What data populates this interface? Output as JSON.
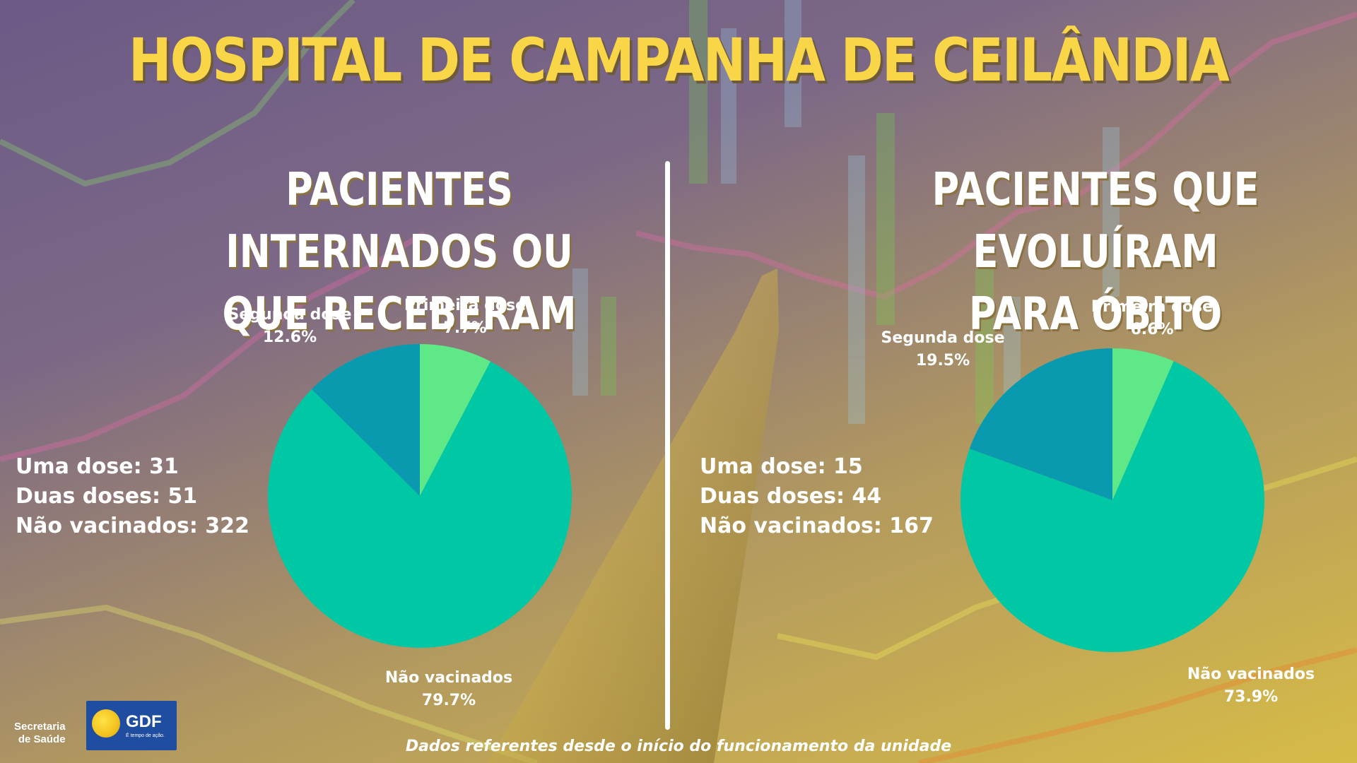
{
  "title": "HOSPITAL DE CAMPANHA DE CEILÂNDIA",
  "footer_note": "Dados referentes desde o início do funcionamento da unidade",
  "logo": {
    "secretaria": [
      "Secretaria",
      "de Saúde"
    ],
    "brand": "GDF",
    "tagline": "É tempo de ação."
  },
  "colors": {
    "primeira_dose": "#5ee887",
    "segunda_dose": "#0a9ab0",
    "nao_vacinados": "#00c8a5"
  },
  "panels": [
    {
      "subtitle": [
        "PACIENTES INTERNADOS OU",
        "QUE RECEBERAM ALTA"
      ],
      "counts": [
        "Uma dose: 31",
        "Duas doses: 51",
        "Não vacinados: 322"
      ]
    },
    {
      "subtitle": [
        "PACIENTES QUE EVOLUÍRAM",
        "PARA ÓBITO"
      ],
      "counts": [
        "Uma dose: 15",
        "Duas doses: 44",
        "Não vacinados: 167"
      ]
    }
  ],
  "chart_data": [
    {
      "type": "pie",
      "title": "PACIENTES INTERNADOS OU QUE RECEBERAM ALTA",
      "slices": [
        {
          "label": "Primeira dose",
          "value": 7.7,
          "display": "7.7%"
        },
        {
          "label": "Não vacinados",
          "value": 79.7,
          "display": "79.7%"
        },
        {
          "label": "Segunda dose",
          "value": 12.6,
          "display": "12.6%"
        }
      ]
    },
    {
      "type": "pie",
      "title": "PACIENTES QUE EVOLUÍRAM PARA ÓBITO",
      "slices": [
        {
          "label": "Primeira dose",
          "value": 6.6,
          "display": "6.6%"
        },
        {
          "label": "Não vacinados",
          "value": 73.9,
          "display": "73.9%"
        },
        {
          "label": "Segunda dose",
          "value": 19.5,
          "display": "19.5%"
        }
      ]
    }
  ]
}
